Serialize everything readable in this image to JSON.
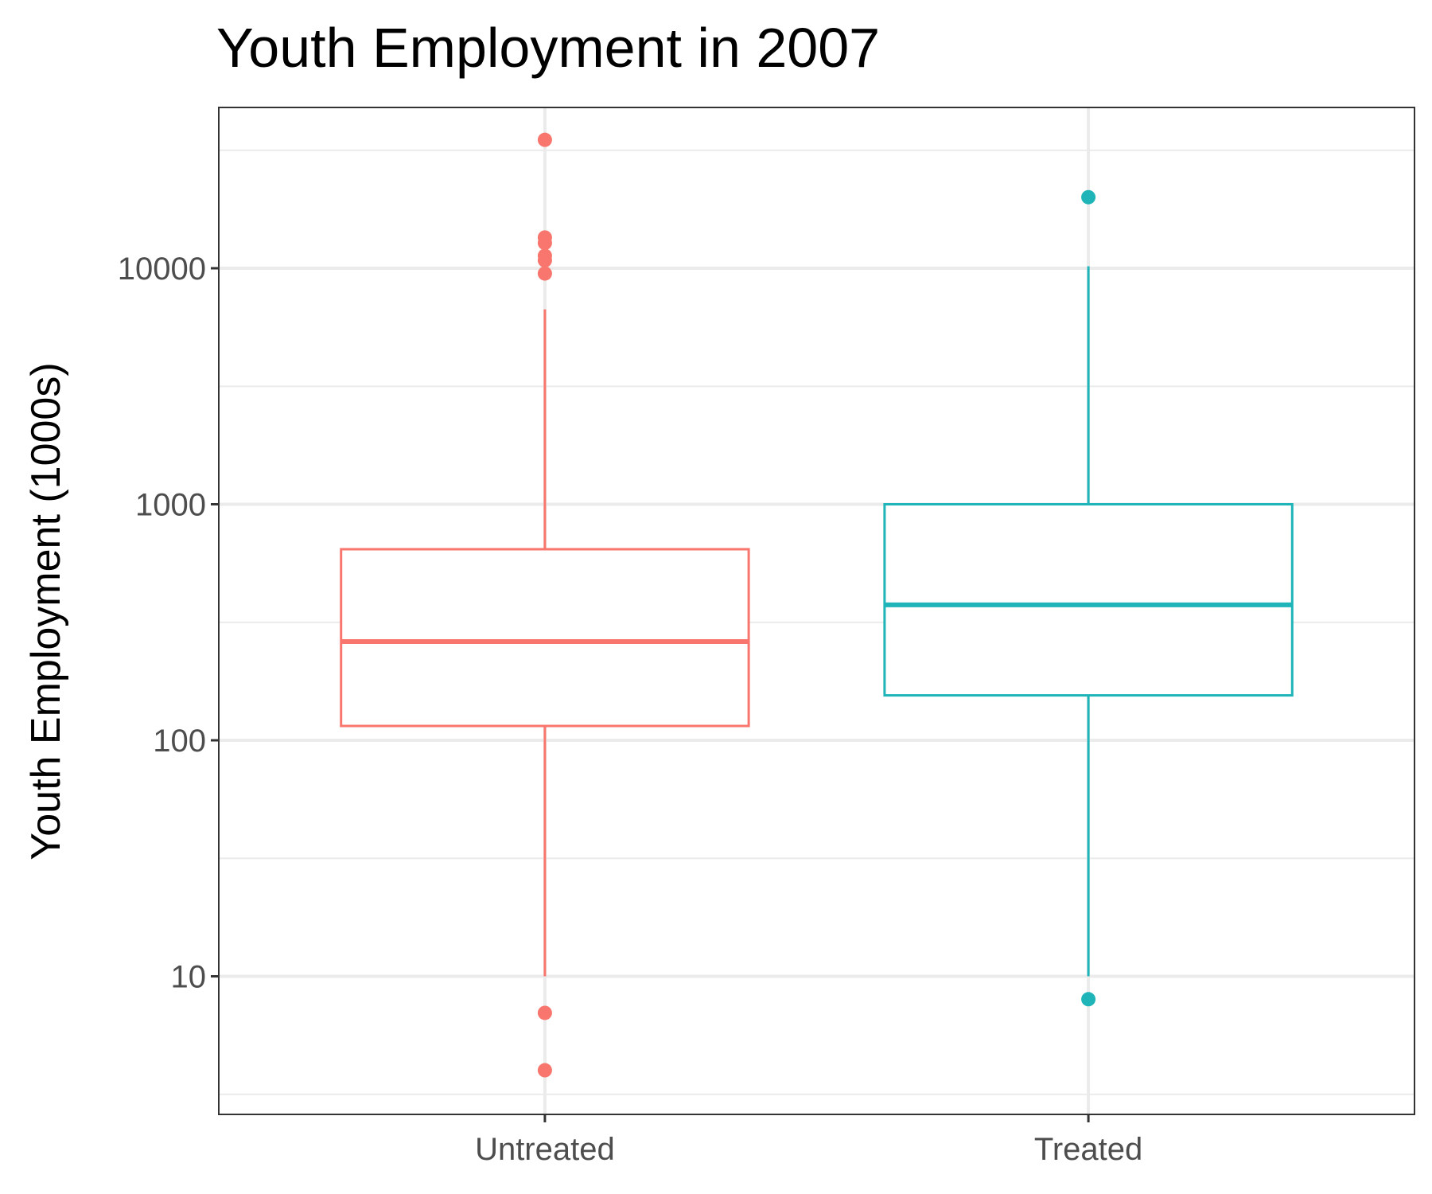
{
  "chart_data": {
    "type": "boxplot",
    "title": "Youth Employment in 2007",
    "xlabel": "",
    "ylabel": "Youth Employment (1000s)",
    "y_scale": "log10",
    "ylim": [
      2.6,
      48000
    ],
    "y_major_ticks": [
      10,
      100,
      1000,
      10000
    ],
    "y_tick_labels": [
      "10",
      "100",
      "1000",
      "10000"
    ],
    "y_minor_gridlines": [
      3.16,
      31.6,
      316,
      3160,
      31600
    ],
    "grid": true,
    "legend": "none",
    "categories": [
      "Untreated",
      "Treated"
    ],
    "boxes": [
      {
        "category": "Untreated",
        "color": "#F8766D",
        "whisker_low": 10,
        "q1": 115,
        "median": 262,
        "q3": 645,
        "whisker_high": 6700,
        "outliers": [
          4,
          7,
          9500,
          10800,
          11300,
          12800,
          13500,
          35000
        ]
      },
      {
        "category": "Treated",
        "color": "#1FB5B8",
        "whisker_low": 10,
        "q1": 155,
        "median": 375,
        "q3": 1000,
        "whisker_high": 10200,
        "outliers": [
          8,
          20000
        ]
      }
    ]
  }
}
